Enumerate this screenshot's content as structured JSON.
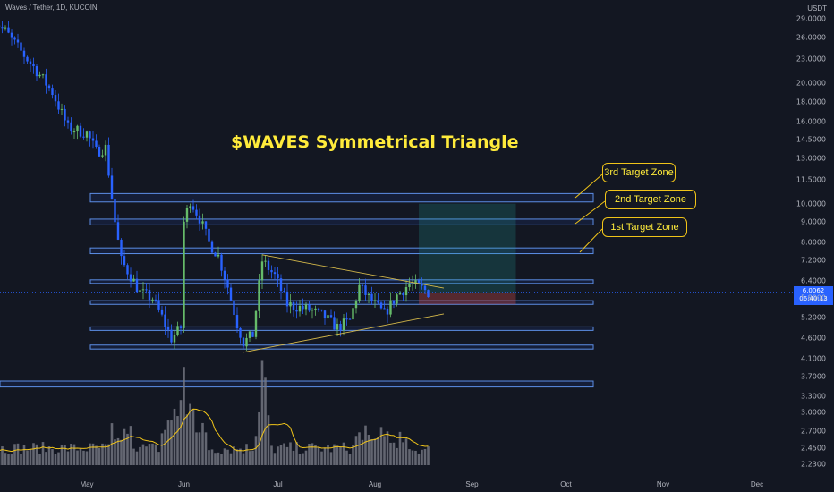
{
  "header": {
    "symbol": "Waves / Tether, 1D, KUCOIN",
    "currency": "USDT"
  },
  "annotations": {
    "title": "$WAVES Symmetrical Triangle",
    "callouts": [
      "3rd Target Zone",
      "2nd Target Zone",
      "1st Target Zone"
    ]
  },
  "price_tag": {
    "price": "6.0062",
    "countdown": "06:40:13"
  },
  "colors": {
    "background": "#131722",
    "up": "#66bb6a",
    "down": "#2962ff",
    "zone_border": "#5c8ee6",
    "title": "#ffeb3b",
    "volume": "#787b86",
    "volume_ma": "#f0c419"
  },
  "chart_data": {
    "type": "candlestick",
    "title": "$WAVES Symmetrical Triangle",
    "x_labels": [
      "May",
      "Jun",
      "Jul",
      "Aug",
      "Sep",
      "Oct",
      "Nov",
      "Dec"
    ],
    "y_labels": [
      "29.0000",
      "26.0000",
      "23.0000",
      "20.0000",
      "18.0000",
      "16.0000",
      "14.5000",
      "13.0000",
      "11.5000",
      "10.0000",
      "9.0000",
      "8.0000",
      "7.2000",
      "6.4000",
      "5.8000",
      "5.2000",
      "4.6000",
      "4.1000",
      "3.7000",
      "3.3000",
      "3.0000",
      "2.7000",
      "2.4500",
      "2.2300"
    ],
    "y_scale": "log",
    "price_path": [
      [
        "2022-04-01",
        29.0
      ],
      [
        "2022-04-05",
        27.0
      ],
      [
        "2022-04-10",
        24.0
      ],
      [
        "2022-04-15",
        21.5
      ],
      [
        "2022-04-20",
        19.0
      ],
      [
        "2022-04-25",
        15.5
      ],
      [
        "2022-05-01",
        15.0
      ],
      [
        "2022-05-04",
        13.5
      ],
      [
        "2022-05-07",
        13.8
      ],
      [
        "2022-05-10",
        9.0
      ],
      [
        "2022-05-12",
        7.2
      ],
      [
        "2022-05-15",
        6.6
      ],
      [
        "2022-05-18",
        6.0
      ],
      [
        "2022-05-22",
        5.8
      ],
      [
        "2022-05-25",
        5.2
      ],
      [
        "2022-05-28",
        4.6
      ],
      [
        "2022-05-31",
        4.9
      ],
      [
        "2022-06-01",
        9.0
      ],
      [
        "2022-06-03",
        10.2
      ],
      [
        "2022-06-06",
        9.2
      ],
      [
        "2022-06-09",
        8.0
      ],
      [
        "2022-06-12",
        7.4
      ],
      [
        "2022-06-15",
        6.2
      ],
      [
        "2022-06-18",
        5.0
      ],
      [
        "2022-06-20",
        4.5
      ],
      [
        "2022-06-23",
        4.7
      ],
      [
        "2022-06-26",
        7.2
      ],
      [
        "2022-06-30",
        6.6
      ],
      [
        "2022-07-04",
        5.6
      ],
      [
        "2022-07-08",
        5.5
      ],
      [
        "2022-07-12",
        5.4
      ],
      [
        "2022-07-16",
        5.2
      ],
      [
        "2022-07-20",
        4.9
      ],
      [
        "2022-07-24",
        5.1
      ],
      [
        "2022-07-27",
        6.2
      ],
      [
        "2022-07-31",
        5.7
      ],
      [
        "2022-08-04",
        5.3
      ],
      [
        "2022-08-08",
        5.9
      ],
      [
        "2022-08-12",
        6.3
      ],
      [
        "2022-08-15",
        6.2
      ],
      [
        "2022-08-18",
        6.0
      ]
    ],
    "volume_peak_date": "2022-06-26",
    "target_zones": [
      {
        "low": 10.1,
        "high": 10.6
      },
      {
        "low": 8.85,
        "high": 9.15
      },
      {
        "low": 7.5,
        "high": 7.75
      },
      {
        "low": 6.35,
        "high": 6.45
      },
      {
        "low": 5.6,
        "high": 5.72
      },
      {
        "low": 4.82,
        "high": 4.92
      },
      {
        "low": 4.33,
        "high": 4.43
      },
      {
        "low": 3.48,
        "high": 3.6
      }
    ],
    "triangle": {
      "upper": [
        [
          "2022-06-26",
          7.45
        ],
        [
          "2022-08-23",
          6.15
        ]
      ],
      "lower": [
        [
          "2022-06-20",
          4.25
        ],
        [
          "2022-08-23",
          5.3
        ]
      ]
    },
    "long_position": {
      "start": "2022-08-15",
      "end": "2022-09-15",
      "target": 10.0,
      "entry": 6.0,
      "stop": 5.6
    },
    "last_price": 6.0062
  }
}
